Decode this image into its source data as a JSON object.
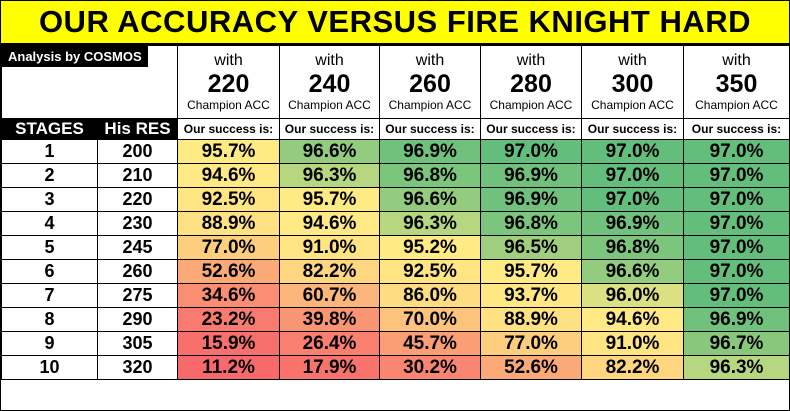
{
  "title": "OUR ACCURACY VERSUS FIRE KNIGHT HARD",
  "analysis_label": "Analysis by COSMOS",
  "columns": [
    {
      "with": "with",
      "acc": "220",
      "champ": "Champion ACC"
    },
    {
      "with": "with",
      "acc": "240",
      "champ": "Champion ACC"
    },
    {
      "with": "with",
      "acc": "260",
      "champ": "Champion ACC"
    },
    {
      "with": "with",
      "acc": "280",
      "champ": "Champion ACC"
    },
    {
      "with": "with",
      "acc": "300",
      "champ": "Champion ACC"
    },
    {
      "with": "with",
      "acc": "350",
      "champ": "Champion ACC"
    }
  ],
  "header": {
    "stages": "STAGES",
    "his_res": "His RES",
    "success": "Our success is:"
  },
  "rows": [
    {
      "stage": "1",
      "res": "200",
      "values": [
        "95.7%",
        "96.6%",
        "96.9%",
        "97.0%",
        "97.0%",
        "97.0%"
      ]
    },
    {
      "stage": "2",
      "res": "210",
      "values": [
        "94.6%",
        "96.3%",
        "96.8%",
        "96.9%",
        "97.0%",
        "97.0%"
      ]
    },
    {
      "stage": "3",
      "res": "220",
      "values": [
        "92.5%",
        "95.7%",
        "96.6%",
        "96.9%",
        "97.0%",
        "97.0%"
      ]
    },
    {
      "stage": "4",
      "res": "230",
      "values": [
        "88.9%",
        "94.6%",
        "96.3%",
        "96.8%",
        "96.9%",
        "97.0%"
      ]
    },
    {
      "stage": "5",
      "res": "245",
      "values": [
        "77.0%",
        "91.0%",
        "95.2%",
        "96.5%",
        "96.8%",
        "97.0%"
      ]
    },
    {
      "stage": "6",
      "res": "260",
      "values": [
        "52.6%",
        "82.2%",
        "92.5%",
        "95.7%",
        "96.6%",
        "97.0%"
      ]
    },
    {
      "stage": "7",
      "res": "275",
      "values": [
        "34.6%",
        "60.7%",
        "86.0%",
        "93.7%",
        "96.0%",
        "97.0%"
      ]
    },
    {
      "stage": "8",
      "res": "290",
      "values": [
        "23.2%",
        "39.8%",
        "70.0%",
        "88.9%",
        "94.6%",
        "96.9%"
      ]
    },
    {
      "stage": "9",
      "res": "305",
      "values": [
        "15.9%",
        "26.4%",
        "45.7%",
        "77.0%",
        "91.0%",
        "96.7%"
      ]
    },
    {
      "stage": "10",
      "res": "320",
      "values": [
        "11.2%",
        "17.9%",
        "30.2%",
        "52.6%",
        "82.2%",
        "96.3%"
      ]
    }
  ],
  "colors": {
    "low": "#f8696b",
    "mid": "#ffeb84",
    "high": "#63be7b",
    "title_bg": "#ffff00"
  }
}
